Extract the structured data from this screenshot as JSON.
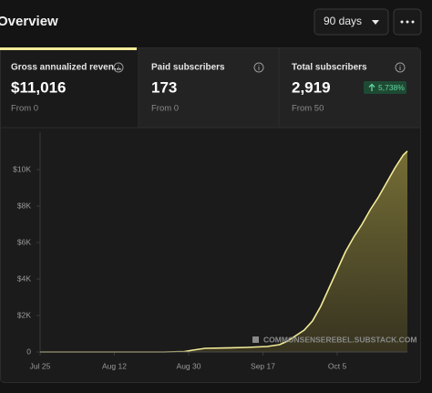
{
  "header": {
    "title": "Overview",
    "range": "90 days"
  },
  "tabs": [
    {
      "label": "Gross annualized reven...",
      "value": "$11,016",
      "from": "From 0"
    },
    {
      "label": "Paid subscribers",
      "value": "173",
      "from": "From 0"
    },
    {
      "label": "Total subscribers",
      "value": "2,919",
      "from": "From 50",
      "badge": "5,738%"
    }
  ],
  "chart_data": {
    "type": "area",
    "watermark": "COMMONSENSEREBEL.SUBSTACK.COM",
    "color": "#f3ec98",
    "x": [
      0,
      10,
      20,
      30,
      35,
      37,
      40,
      45,
      50,
      55,
      58,
      60,
      62,
      64,
      66,
      68,
      70,
      72,
      74,
      76,
      78,
      80,
      82,
      84,
      86,
      88,
      89
    ],
    "values": [
      0,
      0,
      0,
      0,
      20,
      100,
      200,
      220,
      250,
      300,
      400,
      600,
      900,
      1200,
      1700,
      2500,
      3500,
      4500,
      5500,
      6300,
      7000,
      7800,
      8500,
      9300,
      10100,
      10800,
      11016
    ],
    "xlim": [
      0,
      89
    ],
    "xticks": [
      {
        "value": 0,
        "label": "Jul 25"
      },
      {
        "value": 18,
        "label": "Aug 12"
      },
      {
        "value": 36,
        "label": "Aug 30"
      },
      {
        "value": 54,
        "label": "Sep 17"
      },
      {
        "value": 72,
        "label": "Oct 5"
      }
    ],
    "ylim": [
      0,
      11800
    ],
    "yticks": [
      0,
      {
        "value": 2000,
        "label": "$2K"
      },
      {
        "value": 4000,
        "label": "$4K"
      },
      {
        "value": 6000,
        "label": "$6K"
      },
      {
        "value": 8000,
        "label": "$8K"
      },
      {
        "value": 10000,
        "label": "$10K"
      }
    ]
  }
}
